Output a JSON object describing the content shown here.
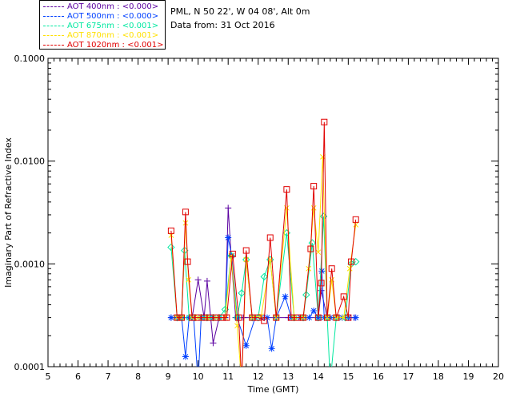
{
  "header": {
    "location": "PML, N 50 22', W 04 08', Alt 0m",
    "data_from": "Data from: 31 Oct 2016"
  },
  "legend": [
    {
      "label": "AOT  400nm : <0.000>",
      "color": "#5a00a0"
    },
    {
      "label": "AOT  500nm : <0.000>",
      "color": "#0040ff"
    },
    {
      "label": "AOT  675nm : <0.001>",
      "color": "#00e8a0"
    },
    {
      "label": "AOT  870nm : <0.001>",
      "color": "#ffe000"
    },
    {
      "label": "AOT 1020nm : <0.001>",
      "color": "#e00000"
    }
  ],
  "chart_data": {
    "type": "line",
    "xlabel": "Time (GMT)",
    "ylabel": "Imaginary Part of Refractive Index",
    "xlim": [
      5,
      20
    ],
    "ylim": [
      0.0001,
      0.1
    ],
    "yscale": "log",
    "xticks": [
      "5",
      "6",
      "7",
      "8",
      "9",
      "10",
      "11",
      "12",
      "13",
      "14",
      "15",
      "16",
      "17",
      "18",
      "19",
      "20"
    ],
    "yticks": [
      {
        "value": 0.0001,
        "label": "0.0001"
      },
      {
        "value": 0.001,
        "label": "0.0010"
      },
      {
        "value": 0.01,
        "label": "0.0100"
      },
      {
        "value": 0.1,
        "label": "0.1000"
      }
    ],
    "grid": false,
    "series": [
      {
        "name": "AOT  400nm : <0.000>",
        "color": "#5a00a0",
        "marker": "plus",
        "points": [
          [
            9.1,
            0.0003
          ],
          [
            9.3,
            0.0003
          ],
          [
            9.5,
            0.0003
          ],
          [
            9.8,
            0.0003
          ],
          [
            10.0,
            0.0007
          ],
          [
            10.2,
            0.0003
          ],
          [
            10.3,
            0.00068
          ],
          [
            10.5,
            0.00017
          ],
          [
            10.7,
            0.0003
          ],
          [
            10.9,
            0.0003
          ],
          [
            11.0,
            0.0035
          ],
          [
            11.1,
            0.0012
          ],
          [
            11.25,
            0.0003
          ],
          [
            11.5,
            0.0003
          ],
          [
            11.8,
            0.0003
          ],
          [
            12.2,
            0.0003
          ],
          [
            12.6,
            0.0003
          ],
          [
            13.0,
            0.0003
          ],
          [
            13.5,
            0.0003
          ],
          [
            14.0,
            0.0003
          ],
          [
            14.1,
            0.00055
          ],
          [
            14.3,
            0.0003
          ],
          [
            14.7,
            0.0003
          ],
          [
            15.0,
            0.0003
          ],
          [
            15.2,
            0.0003
          ]
        ]
      },
      {
        "name": "AOT  500nm : <0.000>",
        "color": "#0040ff",
        "marker": "asterisk",
        "points": [
          [
            9.1,
            0.0003
          ],
          [
            9.3,
            0.0003
          ],
          [
            9.45,
            0.0003
          ],
          [
            9.58,
            0.000125
          ],
          [
            9.7,
            0.0003
          ],
          [
            9.85,
            0.0003
          ],
          [
            10.0,
            7e-05
          ],
          [
            10.1,
            0.0003
          ],
          [
            10.3,
            0.0003
          ],
          [
            10.5,
            0.0003
          ],
          [
            10.7,
            0.0003
          ],
          [
            10.9,
            0.0003
          ],
          [
            11.0,
            0.0018
          ],
          [
            11.12,
            0.0012
          ],
          [
            11.3,
            0.0003
          ],
          [
            11.6,
            0.00016
          ],
          [
            11.9,
            0.0003
          ],
          [
            12.1,
            0.0003
          ],
          [
            12.3,
            0.0003
          ],
          [
            12.45,
            0.00015
          ],
          [
            12.6,
            0.0003
          ],
          [
            12.9,
            0.00048
          ],
          [
            13.1,
            0.0003
          ],
          [
            13.4,
            0.0003
          ],
          [
            13.7,
            0.0003
          ],
          [
            13.85,
            0.00035
          ],
          [
            14.0,
            0.0003
          ],
          [
            14.12,
            0.00085
          ],
          [
            14.2,
            0.0003
          ],
          [
            14.4,
            0.0003
          ],
          [
            14.6,
            0.0003
          ],
          [
            14.8,
            0.0003
          ],
          [
            15.0,
            0.0003
          ],
          [
            15.25,
            0.0003
          ]
        ]
      },
      {
        "name": "AOT  675nm : <0.001>",
        "color": "#00e8a0",
        "marker": "diamond",
        "points": [
          [
            9.1,
            0.00145
          ],
          [
            9.3,
            0.0003
          ],
          [
            9.45,
            0.0003
          ],
          [
            9.55,
            0.00135
          ],
          [
            9.7,
            0.0003
          ],
          [
            9.9,
            0.0003
          ],
          [
            10.1,
            0.0003
          ],
          [
            10.3,
            0.0003
          ],
          [
            10.5,
            0.0003
          ],
          [
            10.7,
            0.0003
          ],
          [
            10.9,
            0.00036
          ],
          [
            11.1,
            0.0012
          ],
          [
            11.3,
            0.0003
          ],
          [
            11.45,
            0.00052
          ],
          [
            11.6,
            0.0011
          ],
          [
            11.8,
            0.0003
          ],
          [
            12.0,
            0.0003
          ],
          [
            12.2,
            0.00075
          ],
          [
            12.4,
            0.0011
          ],
          [
            12.6,
            0.0003
          ],
          [
            12.95,
            0.002
          ],
          [
            13.2,
            0.0003
          ],
          [
            13.5,
            0.0003
          ],
          [
            13.6,
            0.0005
          ],
          [
            13.8,
            0.0016
          ],
          [
            14.0,
            0.0003
          ],
          [
            14.18,
            0.0029
          ],
          [
            14.3,
            0.0003
          ],
          [
            14.4,
            7e-05
          ],
          [
            14.6,
            0.0003
          ],
          [
            14.9,
            0.0003
          ],
          [
            15.1,
            0.001
          ],
          [
            15.25,
            0.00105
          ]
        ]
      },
      {
        "name": "AOT  870nm : <0.001>",
        "color": "#ffe000",
        "marker": "cross",
        "points": [
          [
            9.1,
            0.0019
          ],
          [
            9.3,
            0.0003
          ],
          [
            9.45,
            0.0003
          ],
          [
            9.58,
            0.0025
          ],
          [
            9.68,
            0.0007
          ],
          [
            9.8,
            0.0003
          ],
          [
            10.0,
            0.0003
          ],
          [
            10.3,
            0.0003
          ],
          [
            10.6,
            0.0003
          ],
          [
            10.9,
            0.0003
          ],
          [
            11.1,
            0.0012
          ],
          [
            11.3,
            0.00025
          ],
          [
            11.45,
            7e-05
          ],
          [
            11.6,
            0.0011
          ],
          [
            11.8,
            0.0003
          ],
          [
            12.1,
            0.00031
          ],
          [
            12.4,
            0.0011
          ],
          [
            12.6,
            0.0003
          ],
          [
            12.95,
            0.0035
          ],
          [
            13.2,
            0.0003
          ],
          [
            13.5,
            0.0003
          ],
          [
            13.68,
            0.0009
          ],
          [
            13.85,
            0.0035
          ],
          [
            14.0,
            0.0013
          ],
          [
            14.15,
            0.011
          ],
          [
            14.3,
            0.0003
          ],
          [
            14.45,
            0.0007
          ],
          [
            14.6,
            0.0003
          ],
          [
            14.85,
            0.0003
          ],
          [
            15.05,
            0.0009
          ],
          [
            15.25,
            0.0024
          ]
        ]
      },
      {
        "name": "AOT 1020nm : <0.001>",
        "color": "#e00000",
        "marker": "square",
        "points": [
          [
            9.1,
            0.0021
          ],
          [
            9.3,
            0.0003
          ],
          [
            9.45,
            0.0003
          ],
          [
            9.58,
            0.0032
          ],
          [
            9.65,
            0.00105
          ],
          [
            9.8,
            0.0003
          ],
          [
            10.0,
            0.0003
          ],
          [
            10.2,
            0.0003
          ],
          [
            10.4,
            0.0003
          ],
          [
            10.6,
            0.0003
          ],
          [
            10.8,
            0.0003
          ],
          [
            10.95,
            0.0003
          ],
          [
            11.15,
            0.00125
          ],
          [
            11.35,
            0.0003
          ],
          [
            11.45,
            7e-05
          ],
          [
            11.6,
            0.00135
          ],
          [
            11.8,
            0.0003
          ],
          [
            12.0,
            0.0003
          ],
          [
            12.2,
            0.00028
          ],
          [
            12.4,
            0.0018
          ],
          [
            12.6,
            0.0003
          ],
          [
            12.95,
            0.0053
          ],
          [
            13.1,
            0.0003
          ],
          [
            13.3,
            0.0003
          ],
          [
            13.5,
            0.0003
          ],
          [
            13.75,
            0.0014
          ],
          [
            13.85,
            0.0057
          ],
          [
            14.0,
            0.0003
          ],
          [
            14.1,
            0.00065
          ],
          [
            14.2,
            0.024
          ],
          [
            14.3,
            0.0003
          ],
          [
            14.45,
            0.0009
          ],
          [
            14.6,
            0.0003
          ],
          [
            14.85,
            0.00048
          ],
          [
            15.0,
            0.0003
          ],
          [
            15.1,
            0.00105
          ],
          [
            15.25,
            0.0027
          ]
        ]
      }
    ]
  }
}
